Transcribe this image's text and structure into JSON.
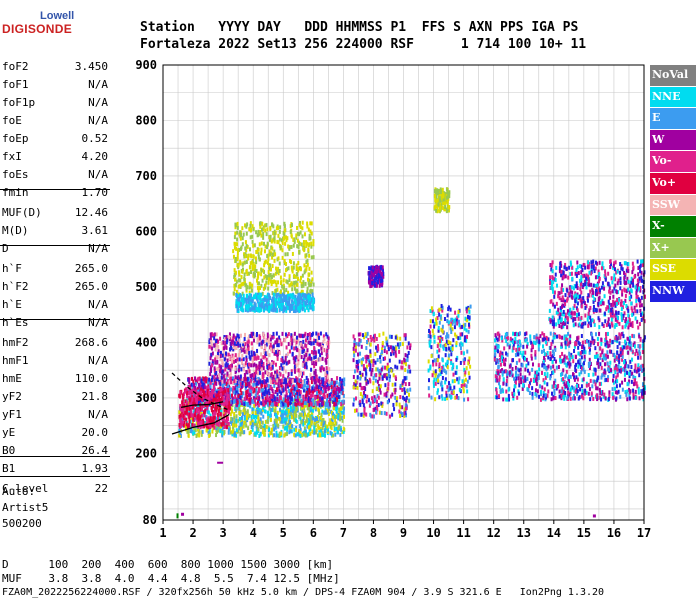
{
  "logo": {
    "top": "Lowell",
    "main": "DIGISONDE"
  },
  "header": {
    "line1": "Station   YYYY DAY   DDD HHMMSS P1  FFS S AXN PPS IGA PS",
    "line2": "Fortaleza 2022 Set13 256 224000 RSF      1 714 100 10+ 11"
  },
  "params": [
    {
      "name": "foF2",
      "value": "3.450"
    },
    {
      "name": "foF1",
      "value": "N/A"
    },
    {
      "name": "foF1p",
      "value": "N/A"
    },
    {
      "name": "foE",
      "value": "N/A"
    },
    {
      "name": "foEp",
      "value": "0.52"
    },
    {
      "name": "fxI",
      "value": "4.20"
    },
    {
      "name": "foEs",
      "value": "N/A"
    },
    {
      "name": "fmin",
      "value": "1.70"
    },
    {
      "name": "MUF(D)",
      "value": "12.46"
    },
    {
      "name": "M(D)",
      "value": "3.61"
    },
    {
      "name": "D",
      "value": "N/A"
    },
    {
      "name": "h`F",
      "value": "265.0"
    },
    {
      "name": "h`F2",
      "value": "265.0"
    },
    {
      "name": "h`E",
      "value": "N/A"
    },
    {
      "name": "h`Es",
      "value": "N/A"
    },
    {
      "name": "hmF2",
      "value": "268.6"
    },
    {
      "name": "hmF1",
      "value": "N/A"
    },
    {
      "name": "hmE",
      "value": "110.0"
    },
    {
      "name": "yF2",
      "value": "21.8"
    },
    {
      "name": "yF1",
      "value": "N/A"
    },
    {
      "name": "yE",
      "value": "20.0"
    },
    {
      "name": "B0",
      "value": "26.4"
    },
    {
      "name": "B1",
      "value": "1.93"
    },
    {
      "name": "C-level",
      "value": "22"
    }
  ],
  "auto": {
    "line1": "Auto:",
    "line2": "Artist5",
    "line3": "500200"
  },
  "legend": [
    {
      "label": "NoVal",
      "color": "#808080"
    },
    {
      "label": "NNE",
      "color": "#00dcf0"
    },
    {
      "label": "E",
      "color": "#3c9cf0"
    },
    {
      "label": "W",
      "color": "#a000a0"
    },
    {
      "label": "Vo-",
      "color": "#e0208c"
    },
    {
      "label": "Vo+",
      "color": "#e00040"
    },
    {
      "label": "SSW",
      "color": "#f4b4b4"
    },
    {
      "label": "X-",
      "color": "#008000"
    },
    {
      "label": "X+",
      "color": "#98c850"
    },
    {
      "label": "SSE",
      "color": "#dcdc00"
    },
    {
      "label": "NNW",
      "color": "#2020e0"
    }
  ],
  "chart_data": {
    "type": "scatter",
    "xlim": [
      1,
      17
    ],
    "ylim": [
      80,
      900
    ],
    "x_ticks": [
      1,
      2,
      3,
      4,
      5,
      6,
      7,
      8,
      9,
      10,
      11,
      12,
      13,
      14,
      15,
      16,
      17
    ],
    "y_ticks": [
      80,
      200,
      300,
      400,
      500,
      600,
      700,
      800,
      900
    ],
    "grid": true,
    "clusters": [
      {
        "x": [
          1.5,
          7.0
        ],
        "y": [
          235,
          300
        ],
        "colors": [
          "#dcdc00",
          "#3c9cf0",
          "#00dcf0",
          "#98c850"
        ]
      },
      {
        "x": [
          1.8,
          7.0
        ],
        "y": [
          290,
          340
        ],
        "colors": [
          "#a000a0",
          "#e0208c",
          "#e00040",
          "#2020e0",
          "#3c9cf0"
        ]
      },
      {
        "x": [
          1.5,
          3.2
        ],
        "y": [
          250,
          320
        ],
        "colors": [
          "#e00040",
          "#e0208c"
        ]
      },
      {
        "x": [
          2.5,
          6.5
        ],
        "y": [
          330,
          420
        ],
        "colors": [
          "#a000a0",
          "#e0208c",
          "#2020e0",
          "#f4b4b4"
        ]
      },
      {
        "x": [
          7.3,
          9.2
        ],
        "y": [
          270,
          420
        ],
        "colors": [
          "#a000a0",
          "#2020e0",
          "#dcdc00",
          "#3c9cf0",
          "#e0208c"
        ]
      },
      {
        "x": [
          9.8,
          11.2
        ],
        "y": [
          300,
          470
        ],
        "colors": [
          "#2020e0",
          "#00dcf0",
          "#dcdc00",
          "#e0208c",
          "#3c9cf0"
        ]
      },
      {
        "x": [
          12.0,
          17.0
        ],
        "y": [
          300,
          420
        ],
        "colors": [
          "#e0208c",
          "#a000a0",
          "#3c9cf0",
          "#00dcf0",
          "#2020e0"
        ]
      },
      {
        "x": [
          13.8,
          17.0
        ],
        "y": [
          430,
          550
        ],
        "colors": [
          "#2020e0",
          "#e0208c",
          "#a000a0",
          "#00dcf0"
        ]
      },
      {
        "x": [
          3.3,
          6.0
        ],
        "y": [
          490,
          620
        ],
        "colors": [
          "#dcdc00",
          "#98c850"
        ]
      },
      {
        "x": [
          3.4,
          6.0
        ],
        "y": [
          460,
          490
        ],
        "colors": [
          "#3c9cf0",
          "#00dcf0"
        ]
      },
      {
        "x": [
          7.8,
          8.3
        ],
        "y": [
          505,
          540
        ],
        "colors": [
          "#2020e0",
          "#a000a0"
        ]
      },
      {
        "x": [
          10.0,
          10.5
        ],
        "y": [
          640,
          680
        ],
        "colors": [
          "#dcdc00",
          "#98c850"
        ]
      }
    ],
    "lines": [
      {
        "x": [
          1.3,
          2.0,
          2.7,
          3.2
        ],
        "y": [
          235,
          247,
          255,
          270
        ]
      },
      {
        "x": [
          1.3,
          1.8,
          2.3,
          2.8,
          3.2
        ],
        "y": [
          345,
          320,
          300,
          287,
          278
        ],
        "dashed": true
      },
      {
        "x": [
          1.6,
          2.0,
          2.5,
          3.0
        ],
        "y": [
          283,
          287,
          288,
          293
        ]
      }
    ]
  },
  "footer": {
    "line1": "D      100  200  400  600  800 1000 1500 3000 [km]",
    "line2": "MUF    3.8  3.8  4.0  4.4  4.8  5.5  7.4 12.5 [MHz]",
    "line3": "FZA0M_2022256224000.RSF / 320fx256h 50 kHz 5.0 km / DPS-4 FZA0M 904 / 3.9 S 321.6 E   Ion2Png 1.3.20"
  }
}
